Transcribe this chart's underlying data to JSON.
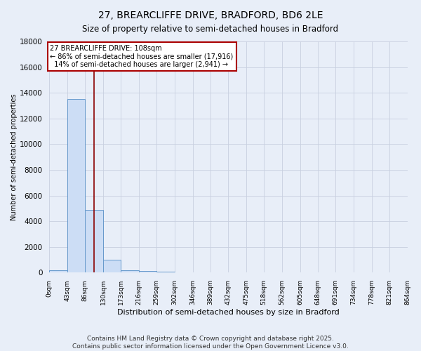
{
  "title": "27, BREARCLIFFE DRIVE, BRADFORD, BD6 2LE",
  "subtitle": "Size of property relative to semi-detached houses in Bradford",
  "xlabel": "Distribution of semi-detached houses by size in Bradford",
  "ylabel": "Number of semi-detached properties",
  "bin_edges": [
    0,
    43,
    86,
    130,
    173,
    216,
    259,
    302,
    346,
    389,
    432,
    475,
    518,
    562,
    605,
    648,
    691,
    734,
    778,
    821,
    864
  ],
  "bar_heights": [
    200,
    13500,
    4900,
    1000,
    200,
    150,
    80,
    0,
    0,
    0,
    0,
    0,
    0,
    0,
    0,
    0,
    0,
    0,
    0,
    0
  ],
  "bar_color": "#ccddf5",
  "bar_edge_color": "#6699cc",
  "property_size": 108,
  "red_line_color": "#8b0000",
  "annotation_text": "27 BREARCLIFFE DRIVE: 108sqm\n← 86% of semi-detached houses are smaller (17,916)\n  14% of semi-detached houses are larger (2,941) →",
  "annotation_box_color": "#ffffff",
  "annotation_box_edge": "#aa0000",
  "ylim": [
    0,
    18000
  ],
  "yticks": [
    0,
    2000,
    4000,
    6000,
    8000,
    10000,
    12000,
    14000,
    16000,
    18000
  ],
  "background_color": "#e8eef8",
  "grid_color": "#c8d0e0",
  "footer_line1": "Contains HM Land Registry data © Crown copyright and database right 2025.",
  "footer_line2": "Contains public sector information licensed under the Open Government Licence v3.0.",
  "title_fontsize": 10,
  "subtitle_fontsize": 8.5,
  "annotation_fontsize": 7,
  "footer_fontsize": 6.5,
  "ylabel_fontsize": 7,
  "xlabel_fontsize": 8
}
